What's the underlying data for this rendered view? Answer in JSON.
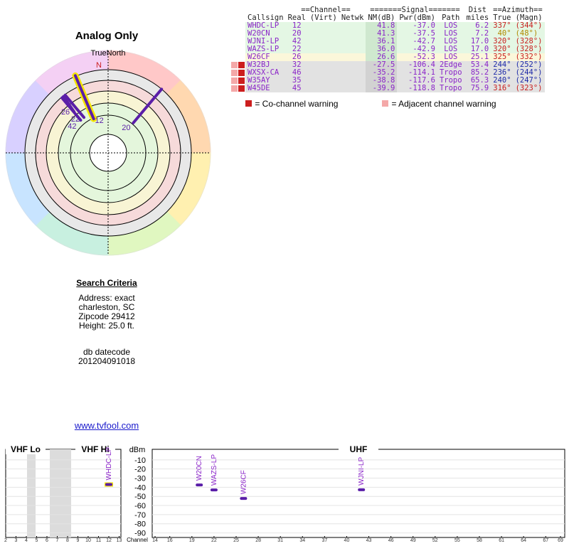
{
  "radar": {
    "title": "Analog Only",
    "north_label": "TrueNorth",
    "north_letter": "N",
    "bearings": [
      {
        "label": "12",
        "azimuth": 337,
        "highlight": true
      },
      {
        "label": "20",
        "azimuth": 40,
        "highlight": false
      },
      {
        "label": "42",
        "azimuth": 320,
        "highlight": false
      },
      {
        "label": "22",
        "azimuth": 320,
        "highlight": false
      },
      {
        "label": "26",
        "azimuth": 325,
        "highlight": false
      }
    ]
  },
  "criteria": {
    "heading": "Search Criteria",
    "lines": [
      "Address: exact",
      "charleston, SC",
      "Zipcode 29412",
      "Height: 25.0 ft."
    ],
    "db_label": "db datecode",
    "db_value": "201204091018",
    "link": "www.tvfool.com"
  },
  "table": {
    "group_headers": {
      "channel": "==Channel==",
      "signal": "=======Signal=======",
      "dist": "Dist",
      "azimuth": "==Azimuth=="
    },
    "columns": [
      "Callsign",
      "Real",
      "(Virt)",
      "Netwk",
      "NM(dB)",
      "Pwr(dBm)",
      "Path",
      "miles",
      "True",
      "(Magn)"
    ],
    "rows": [
      {
        "warn": "",
        "callsign": "WHDC-LP",
        "real": "12",
        "virt": "",
        "netwk": "",
        "nm": "41.8",
        "pwr": "-37.0",
        "path": "LOS",
        "dist": "6.2",
        "true": "337°",
        "magn": "(344°)",
        "az_color": "#c81e1e",
        "row_bg": "#e4f7e4"
      },
      {
        "warn": "",
        "callsign": "W20CN",
        "real": "20",
        "virt": "",
        "netwk": "",
        "nm": "41.3",
        "pwr": "-37.5",
        "path": "LOS",
        "dist": "7.2",
        "true": "40°",
        "magn": "(48°)",
        "az_color": "#b08a00",
        "row_bg": "#e4f7e4"
      },
      {
        "warn": "",
        "callsign": "WJNI-LP",
        "real": "42",
        "virt": "",
        "netwk": "",
        "nm": "36.1",
        "pwr": "-42.7",
        "path": "LOS",
        "dist": "17.0",
        "true": "320°",
        "magn": "(328°)",
        "az_color": "#c81e1e",
        "row_bg": "#e4f7e4"
      },
      {
        "warn": "",
        "callsign": "WAZS-LP",
        "real": "22",
        "virt": "",
        "netwk": "",
        "nm": "36.0",
        "pwr": "-42.9",
        "path": "LOS",
        "dist": "17.0",
        "true": "320°",
        "magn": "(328°)",
        "az_color": "#c81e1e",
        "row_bg": "#e4f7e4"
      },
      {
        "warn": "",
        "callsign": "W26CF",
        "real": "26",
        "virt": "",
        "netwk": "",
        "nm": "26.6",
        "pwr": "-52.3",
        "path": "LOS",
        "dist": "25.1",
        "true": "325°",
        "magn": "(332°)",
        "az_color": "#c81e1e",
        "row_bg": "#fbf7da"
      },
      {
        "warn": "both",
        "callsign": "W32BJ",
        "real": "32",
        "virt": "",
        "netwk": "",
        "nm": "-27.5",
        "pwr": "-106.4",
        "path": "2Edge",
        "dist": "53.4",
        "true": "244°",
        "magn": "(252°)",
        "az_color": "#1e2aa8",
        "row_bg": "#e2e2e2"
      },
      {
        "warn": "both",
        "callsign": "WXSX-CA",
        "real": "46",
        "virt": "",
        "netwk": "",
        "nm": "-35.2",
        "pwr": "-114.1",
        "path": "Tropo",
        "dist": "85.2",
        "true": "236°",
        "magn": "(244°)",
        "az_color": "#1e2aa8",
        "row_bg": "#e2e2e2"
      },
      {
        "warn": "both",
        "callsign": "W35AY",
        "real": "35",
        "virt": "",
        "netwk": "",
        "nm": "-38.8",
        "pwr": "-117.6",
        "path": "Tropo",
        "dist": "65.3",
        "true": "240°",
        "magn": "(247°)",
        "az_color": "#1e2aa8",
        "row_bg": "#e2e2e2"
      },
      {
        "warn": "both",
        "callsign": "W45DE",
        "real": "45",
        "virt": "",
        "netwk": "",
        "nm": "-39.9",
        "pwr": "-118.8",
        "path": "Tropo",
        "dist": "75.9",
        "true": "316°",
        "magn": "(323°)",
        "az_color": "#c81e1e",
        "row_bg": "#e2e2e2"
      }
    ],
    "legend": {
      "cochannel_letter": "C",
      "cochannel": "= Co-channel warning",
      "adjacent_letter": "a",
      "adjacent": "= Adjacent channel warning"
    }
  },
  "spectrum": {
    "bands": [
      "VHF Lo",
      "VHF Hi",
      "UHF"
    ],
    "unit": "dBm",
    "channel_label": "Channel",
    "y_ticks": [
      "-10",
      "-20",
      "-30",
      "-40",
      "-50",
      "-60",
      "-70",
      "-80",
      "-90"
    ],
    "vhf_lo_ticks": [
      "2",
      "3",
      "4",
      "5",
      "6"
    ],
    "vhf_hi_ticks": [
      "7",
      "8",
      "9",
      "10",
      "11",
      "12",
      "13"
    ],
    "uhf_ticks": [
      "14",
      "16",
      "19",
      "22",
      "25",
      "28",
      "31",
      "34",
      "37",
      "40",
      "43",
      "46",
      "49",
      "52",
      "55",
      "58",
      "61",
      "64",
      "67",
      "69"
    ],
    "stations": [
      {
        "callsign": "WHDC-LP",
        "channel": 12,
        "dbm": -37.0,
        "highlight": true
      },
      {
        "callsign": "W20CN",
        "channel": 20,
        "dbm": -37.5,
        "highlight": false
      },
      {
        "callsign": "WAZS-LP",
        "channel": 22,
        "dbm": -42.9,
        "highlight": false
      },
      {
        "callsign": "W26CF",
        "channel": 26,
        "dbm": -52.3,
        "highlight": false
      },
      {
        "callsign": "WJNI-LP",
        "channel": 42,
        "dbm": -42.7,
        "highlight": false
      }
    ]
  },
  "colors": {
    "purple": "#5a1ea8",
    "violet_text": "#8a24c8",
    "highlight": "#f5e600",
    "warn_red": "#cc1e1e",
    "warn_pink": "#f4a8a8"
  }
}
